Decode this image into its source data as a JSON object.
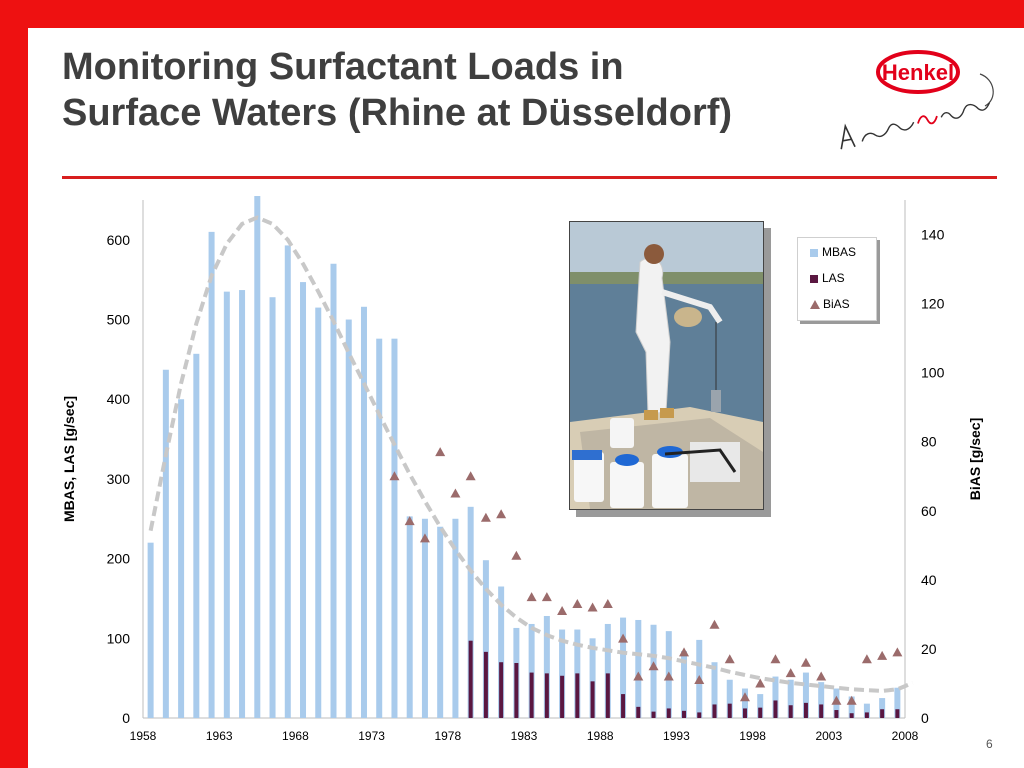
{
  "slide": {
    "title_line1": "Monitoring Surfactant Loads in",
    "title_line2": "Surface Waters (Rhine at Düsseldorf)",
    "page_number": "6"
  },
  "logo": {
    "brand": "Henkel",
    "tagline": "A Brand like a Friend"
  },
  "colors": {
    "frame": "#ee1111",
    "mbas": "#a9cbec",
    "las": "#5a1741",
    "bias": "#9b6b6b",
    "trend": "#c8c8c8"
  },
  "chart_data": {
    "type": "bar",
    "xlabel": "",
    "ylabel": "MBAS, LAS [g/sec]",
    "y2label": "BiAS [g/sec]",
    "xlim": [
      1958,
      2008
    ],
    "ylim": [
      0,
      650
    ],
    "y2lim": [
      0,
      150
    ],
    "x_ticks": [
      "1958",
      "1963",
      "1968",
      "1973",
      "1978",
      "1983",
      "1988",
      "1993",
      "1998",
      "2003",
      "2008"
    ],
    "y_ticks": [
      "0",
      "100",
      "200",
      "300",
      "400",
      "500",
      "600"
    ],
    "y2_ticks": [
      "0",
      "20",
      "40",
      "60",
      "80",
      "100",
      "120",
      "140"
    ],
    "legend": {
      "placement": "top-right, inside plot",
      "entries": [
        "MBAS",
        "LAS",
        "BiAS"
      ]
    },
    "series": [
      {
        "name": "MBAS",
        "kind": "bar",
        "axis": "left",
        "x": [
          1958,
          1959,
          1960,
          1961,
          1962,
          1963,
          1964,
          1965,
          1966,
          1967,
          1968,
          1969,
          1970,
          1971,
          1972,
          1973,
          1974,
          1975,
          1976,
          1977,
          1978,
          1979,
          1980,
          1981,
          1982,
          1983,
          1984,
          1985,
          1986,
          1987,
          1988,
          1989,
          1990,
          1991,
          1992,
          1993,
          1994,
          1995,
          1996,
          1997,
          1998,
          1999,
          2000,
          2001,
          2002,
          2003,
          2004,
          2005,
          2006,
          2007
        ],
        "values": [
          220,
          437,
          400,
          457,
          610,
          535,
          537,
          655,
          528,
          593,
          547,
          515,
          570,
          500,
          516,
          476,
          476,
          253,
          250,
          240,
          250,
          265,
          198,
          165,
          113,
          118,
          128,
          111,
          111,
          100,
          118,
          126,
          123,
          117,
          109,
          84,
          98,
          70,
          48,
          37,
          30,
          52,
          48,
          57,
          45,
          37,
          27,
          18,
          25,
          38
        ]
      },
      {
        "name": "LAS",
        "kind": "bar",
        "axis": "left",
        "x": [
          1979,
          1980,
          1981,
          1982,
          1983,
          1984,
          1985,
          1986,
          1987,
          1988,
          1989,
          1990,
          1991,
          1992,
          1993,
          1994,
          1995,
          1996,
          1997,
          1998,
          1999,
          2000,
          2001,
          2002,
          2003,
          2004,
          2005,
          2006,
          2007
        ],
        "values": [
          97,
          83,
          70,
          69,
          57,
          56,
          53,
          56,
          46,
          56,
          30,
          14,
          8,
          12,
          9,
          7,
          17,
          18,
          12,
          13,
          22,
          16,
          19,
          17,
          10,
          6,
          7,
          11,
          11
        ]
      },
      {
        "name": "BiAS",
        "kind": "scatter",
        "axis": "right",
        "x": [
          1974,
          1975,
          1976,
          1977,
          1978,
          1979,
          1980,
          1981,
          1982,
          1983,
          1984,
          1985,
          1986,
          1987,
          1988,
          1989,
          1990,
          1991,
          1992,
          1993,
          1994,
          1995,
          1996,
          1997,
          1998,
          1999,
          2000,
          2001,
          2002,
          2003,
          2004,
          2005,
          2006,
          2007
        ],
        "values": [
          70,
          57,
          52,
          77,
          65,
          70,
          58,
          59,
          47,
          35,
          35,
          31,
          33,
          32,
          33,
          23,
          12,
          15,
          12,
          19,
          11,
          27,
          17,
          6,
          10,
          17,
          13,
          16,
          12,
          5,
          5,
          17,
          18,
          19
        ]
      }
    ],
    "trend": {
      "style": "dashed curve",
      "x": [
        1958,
        1959,
        1960,
        1961,
        1962,
        1963,
        1964,
        1965,
        1966,
        1967,
        1968,
        1969,
        1970,
        1971,
        1972,
        1973,
        1974,
        1975,
        1976,
        1977,
        1978,
        1979,
        1980,
        1981,
        1982,
        1983,
        1984,
        1985,
        1986,
        1987,
        1988,
        1989,
        1990,
        1991,
        1992,
        1993,
        1994,
        1995,
        1996,
        1997,
        1998,
        1999,
        2000,
        2001,
        2002,
        2003,
        2004,
        2005,
        2006,
        2007,
        2008
      ],
      "values": [
        235,
        330,
        420,
        495,
        555,
        595,
        620,
        628,
        620,
        600,
        570,
        535,
        498,
        458,
        420,
        381,
        343,
        306,
        272,
        240,
        211,
        185,
        162,
        142,
        126,
        113,
        104,
        97,
        92,
        88,
        85,
        82,
        80,
        78,
        75,
        71,
        67,
        63,
        58,
        54,
        50,
        47,
        44,
        42,
        40,
        38,
        36,
        35,
        34,
        36,
        44
      ]
    }
  }
}
